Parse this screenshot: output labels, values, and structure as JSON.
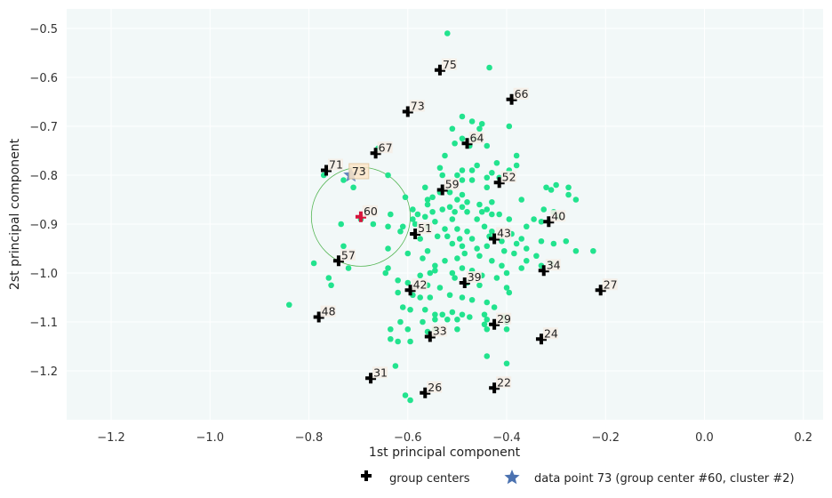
{
  "chart_data": {
    "type": "scatter",
    "xlabel": "1st principal component",
    "ylabel": "2st principal component",
    "xlim": [
      -1.29,
      0.24
    ],
    "ylim": [
      -1.3,
      -0.46
    ],
    "x_ticks": [
      -1.2,
      -1.0,
      -0.8,
      -0.6,
      -0.4,
      -0.2,
      0.0,
      0.2
    ],
    "x_tick_labels": [
      "−1.2",
      "−1.0",
      "−0.8",
      "−0.6",
      "−0.4",
      "−0.2",
      "0.0",
      "0.2"
    ],
    "y_ticks": [
      -1.2,
      -1.1,
      -1.0,
      -0.9,
      -0.8,
      -0.7,
      -0.6,
      -0.5
    ],
    "y_tick_labels": [
      "−1.2",
      "−1.1",
      "−1.0",
      "−0.9",
      "−0.8",
      "−0.7",
      "−0.6",
      "−0.5"
    ],
    "grid": true,
    "legend_position": "bottom-right",
    "colors": {
      "plot_background": "#f2f8f8",
      "points": "#22e38e",
      "centers": "#000000",
      "highlight_center": "#d6143c",
      "star": "#4b72b0",
      "circle": "#55b655",
      "label_box": "#f5ede6",
      "highlight_label_box": "#fce6c8"
    },
    "points": [
      [
        -0.52,
        -0.51
      ],
      [
        -0.435,
        -0.58
      ],
      [
        -0.49,
        -0.68
      ],
      [
        -0.47,
        -0.69
      ],
      [
        -0.45,
        -0.695
      ],
      [
        -0.51,
        -0.705
      ],
      [
        -0.455,
        -0.705
      ],
      [
        -0.395,
        -0.7
      ],
      [
        -0.49,
        -0.725
      ],
      [
        -0.465,
        -0.725
      ],
      [
        -0.505,
        -0.735
      ],
      [
        -0.475,
        -0.74
      ],
      [
        -0.44,
        -0.74
      ],
      [
        -0.38,
        -0.76
      ],
      [
        -0.525,
        -0.76
      ],
      [
        -0.38,
        -0.78
      ],
      [
        -0.42,
        -0.775
      ],
      [
        -0.46,
        -0.78
      ],
      [
        -0.535,
        -0.785
      ],
      [
        -0.49,
        -0.79
      ],
      [
        -0.47,
        -0.79
      ],
      [
        -0.395,
        -0.79
      ],
      [
        -0.43,
        -0.795
      ],
      [
        -0.53,
        -0.8
      ],
      [
        -0.5,
        -0.8
      ],
      [
        -0.44,
        -0.805
      ],
      [
        -0.49,
        -0.81
      ],
      [
        -0.47,
        -0.81
      ],
      [
        -0.415,
        -0.805
      ],
      [
        -0.77,
        -0.8
      ],
      [
        -0.73,
        -0.81
      ],
      [
        -0.71,
        -0.825
      ],
      [
        -0.64,
        -0.8
      ],
      [
        -0.66,
        -0.745
      ],
      [
        -0.565,
        -0.825
      ],
      [
        -0.535,
        -0.835
      ],
      [
        -0.515,
        -0.835
      ],
      [
        -0.44,
        -0.825
      ],
      [
        -0.49,
        -0.84
      ],
      [
        -0.32,
        -0.825
      ],
      [
        -0.3,
        -0.82
      ],
      [
        -0.275,
        -0.825
      ],
      [
        -0.31,
        -0.83
      ],
      [
        -0.56,
        -0.85
      ],
      [
        -0.55,
        -0.845
      ],
      [
        -0.5,
        -0.85
      ],
      [
        -0.48,
        -0.855
      ],
      [
        -0.43,
        -0.855
      ],
      [
        -0.37,
        -0.85
      ],
      [
        -0.275,
        -0.84
      ],
      [
        -0.26,
        -0.85
      ],
      [
        -0.605,
        -0.845
      ],
      [
        -0.56,
        -0.86
      ],
      [
        -0.515,
        -0.865
      ],
      [
        -0.49,
        -0.865
      ],
      [
        -0.455,
        -0.86
      ],
      [
        -0.45,
        -0.875
      ],
      [
        -0.59,
        -0.87
      ],
      [
        -0.58,
        -0.88
      ],
      [
        -0.55,
        -0.875
      ],
      [
        -0.53,
        -0.87
      ],
      [
        -0.505,
        -0.875
      ],
      [
        -0.48,
        -0.875
      ],
      [
        -0.44,
        -0.87
      ],
      [
        -0.43,
        -0.88
      ],
      [
        -0.415,
        -0.88
      ],
      [
        -0.325,
        -0.87
      ],
      [
        -0.305,
        -0.875
      ],
      [
        -0.295,
        -0.885
      ],
      [
        -0.635,
        -0.88
      ],
      [
        -0.59,
        -0.89
      ],
      [
        -0.565,
        -0.885
      ],
      [
        -0.545,
        -0.895
      ],
      [
        -0.51,
        -0.89
      ],
      [
        -0.46,
        -0.89
      ],
      [
        -0.395,
        -0.89
      ],
      [
        -0.36,
        -0.905
      ],
      [
        -0.345,
        -0.89
      ],
      [
        -0.33,
        -0.895
      ],
      [
        -0.735,
        -0.9
      ],
      [
        -0.695,
        -0.89
      ],
      [
        -0.67,
        -0.9
      ],
      [
        -0.64,
        -0.905
      ],
      [
        -0.61,
        -0.905
      ],
      [
        -0.585,
        -0.9
      ],
      [
        -0.56,
        -0.905
      ],
      [
        -0.525,
        -0.91
      ],
      [
        -0.5,
        -0.91
      ],
      [
        -0.48,
        -0.915
      ],
      [
        -0.445,
        -0.905
      ],
      [
        -0.43,
        -0.915
      ],
      [
        -0.39,
        -0.92
      ],
      [
        -0.37,
        -0.93
      ],
      [
        -0.615,
        -0.915
      ],
      [
        -0.575,
        -0.93
      ],
      [
        -0.54,
        -0.925
      ],
      [
        -0.52,
        -0.925
      ],
      [
        -0.495,
        -0.93
      ],
      [
        -0.47,
        -0.93
      ],
      [
        -0.435,
        -0.925
      ],
      [
        -0.41,
        -0.935
      ],
      [
        -0.38,
        -0.94
      ],
      [
        -0.33,
        -0.935
      ],
      [
        -0.305,
        -0.94
      ],
      [
        -0.28,
        -0.935
      ],
      [
        -0.26,
        -0.955
      ],
      [
        -0.225,
        -0.955
      ],
      [
        -0.73,
        -0.945
      ],
      [
        -0.64,
        -0.95
      ],
      [
        -0.6,
        -0.96
      ],
      [
        -0.56,
        -0.955
      ],
      [
        -0.51,
        -0.94
      ],
      [
        -0.49,
        -0.945
      ],
      [
        -0.46,
        -0.95
      ],
      [
        -0.44,
        -0.945
      ],
      [
        -0.405,
        -0.955
      ],
      [
        -0.36,
        -0.95
      ],
      [
        -0.34,
        -0.965
      ],
      [
        -0.79,
        -0.98
      ],
      [
        -0.72,
        -0.99
      ],
      [
        -0.64,
        -0.99
      ],
      [
        -0.57,
        -0.97
      ],
      [
        -0.545,
        -0.985
      ],
      [
        -0.525,
        -0.975
      ],
      [
        -0.5,
        -0.97
      ],
      [
        -0.485,
        -0.96
      ],
      [
        -0.455,
        -0.965
      ],
      [
        -0.43,
        -0.975
      ],
      [
        -0.41,
        -0.985
      ],
      [
        -0.385,
        -0.96
      ],
      [
        -0.36,
        -0.975
      ],
      [
        -0.33,
        -0.985
      ],
      [
        -0.31,
        -0.98
      ],
      [
        -0.76,
        -1.01
      ],
      [
        -0.755,
        -1.025
      ],
      [
        -0.645,
        -1.0
      ],
      [
        -0.575,
        -1.005
      ],
      [
        -0.555,
        -1.0
      ],
      [
        -0.545,
        -0.995
      ],
      [
        -0.51,
        -1.0
      ],
      [
        -0.49,
        -0.99
      ],
      [
        -0.47,
        -0.995
      ],
      [
        -0.45,
        -1.005
      ],
      [
        -0.42,
        -1.01
      ],
      [
        -0.4,
        -1.0
      ],
      [
        -0.37,
        -0.99
      ],
      [
        -0.62,
        -1.015
      ],
      [
        -0.6,
        -1.02
      ],
      [
        -0.56,
        -1.025
      ],
      [
        -0.535,
        -1.03
      ],
      [
        -0.505,
        -1.01
      ],
      [
        -0.48,
        -1.02
      ],
      [
        -0.455,
        -1.025
      ],
      [
        -0.4,
        -1.03
      ],
      [
        -0.395,
        -1.04
      ],
      [
        -0.84,
        -1.065
      ],
      [
        -0.62,
        -1.04
      ],
      [
        -0.59,
        -1.045
      ],
      [
        -0.575,
        -1.05
      ],
      [
        -0.555,
        -1.05
      ],
      [
        -0.515,
        -1.045
      ],
      [
        -0.49,
        -1.05
      ],
      [
        -0.47,
        -1.055
      ],
      [
        -0.44,
        -1.06
      ],
      [
        -0.425,
        -1.07
      ],
      [
        -0.61,
        -1.07
      ],
      [
        -0.595,
        -1.075
      ],
      [
        -0.565,
        -1.075
      ],
      [
        -0.545,
        -1.085
      ],
      [
        -0.53,
        -1.085
      ],
      [
        -0.51,
        -1.08
      ],
      [
        -0.49,
        -1.085
      ],
      [
        -0.475,
        -1.09
      ],
      [
        -0.445,
        -1.085
      ],
      [
        -0.44,
        -1.095
      ],
      [
        -0.615,
        -1.1
      ],
      [
        -0.57,
        -1.1
      ],
      [
        -0.545,
        -1.095
      ],
      [
        -0.52,
        -1.095
      ],
      [
        -0.5,
        -1.095
      ],
      [
        -0.445,
        -1.105
      ],
      [
        -0.405,
        -1.09
      ],
      [
        -0.4,
        -1.1
      ],
      [
        -0.6,
        -1.115
      ],
      [
        -0.635,
        -1.115
      ],
      [
        -0.545,
        -1.115
      ],
      [
        -0.5,
        -1.115
      ],
      [
        -0.44,
        -1.115
      ],
      [
        -0.4,
        -1.115
      ],
      [
        -0.635,
        -1.135
      ],
      [
        -0.62,
        -1.14
      ],
      [
        -0.595,
        -1.14
      ],
      [
        -0.56,
        -1.12
      ],
      [
        -0.44,
        -1.17
      ],
      [
        -0.4,
        -1.185
      ],
      [
        -0.625,
        -1.19
      ],
      [
        -0.605,
        -1.25
      ],
      [
        -0.595,
        -1.26
      ]
    ],
    "centers": [
      {
        "label": "75",
        "x": -0.535,
        "y": -0.585
      },
      {
        "label": "66",
        "x": -0.39,
        "y": -0.645
      },
      {
        "label": "73",
        "x": -0.6,
        "y": -0.67
      },
      {
        "label": "64",
        "x": -0.48,
        "y": -0.735
      },
      {
        "label": "67",
        "x": -0.665,
        "y": -0.755
      },
      {
        "label": "71",
        "x": -0.765,
        "y": -0.79
      },
      {
        "label": "52",
        "x": -0.415,
        "y": -0.815
      },
      {
        "label": "59",
        "x": -0.53,
        "y": -0.83
      },
      {
        "label": "60",
        "x": -0.695,
        "y": -0.885
      },
      {
        "label": "40",
        "x": -0.315,
        "y": -0.895
      },
      {
        "label": "51",
        "x": -0.585,
        "y": -0.92
      },
      {
        "label": "43",
        "x": -0.425,
        "y": -0.93
      },
      {
        "label": "57",
        "x": -0.74,
        "y": -0.975
      },
      {
        "label": "34",
        "x": -0.325,
        "y": -0.995
      },
      {
        "label": "39",
        "x": -0.485,
        "y": -1.02
      },
      {
        "label": "42",
        "x": -0.595,
        "y": -1.035
      },
      {
        "label": "27",
        "x": -0.21,
        "y": -1.035
      },
      {
        "label": "48",
        "x": -0.78,
        "y": -1.09
      },
      {
        "label": "29",
        "x": -0.425,
        "y": -1.105
      },
      {
        "label": "33",
        "x": -0.555,
        "y": -1.13
      },
      {
        "label": "24",
        "x": -0.33,
        "y": -1.135
      },
      {
        "label": "31",
        "x": -0.675,
        "y": -1.215
      },
      {
        "label": "22",
        "x": -0.425,
        "y": -1.235
      },
      {
        "label": "26",
        "x": -0.565,
        "y": -1.245
      }
    ],
    "highlight_center_label": "60",
    "data_point": {
      "label": "73",
      "x": -0.715,
      "y": -0.8
    },
    "neighborhood_circle": {
      "cx": -0.695,
      "cy": -0.885,
      "r": 0.1
    },
    "legend": {
      "centers_label": "group centers",
      "point_label": "data point 73 (group center #60, cluster #2)"
    }
  }
}
